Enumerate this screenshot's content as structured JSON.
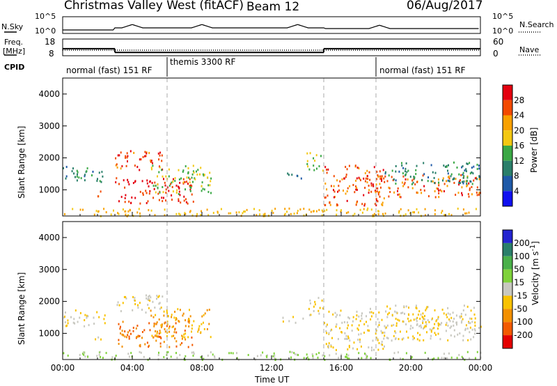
{
  "header": {
    "station": "Christmas Valley West (fitACF)",
    "beam": "Beam 12",
    "date": "06/Aug/2017"
  },
  "noise_panel": {
    "left_label": "N.Sky",
    "right_label": "N.Search",
    "ticks": [
      "10^5",
      "10^0"
    ]
  },
  "freq_panel": {
    "left_label_1": "Freq.",
    "left_label_2": "[MHz]",
    "left_ticks": [
      "18",
      "8"
    ],
    "right_label": "Nave",
    "right_ticks": [
      "60",
      "0"
    ]
  },
  "cpid_panel": {
    "label": "CPID",
    "modes": [
      {
        "name": "normal (fast) 151 RF",
        "start": 0,
        "end": 6
      },
      {
        "name": "themis 3300 RF",
        "start": 6,
        "end": 18
      },
      {
        "name": "normal (fast) 151 RF",
        "start": 18,
        "end": 24
      }
    ]
  },
  "power_panel": {
    "ylabel": "Slant Range [km]",
    "colorbar_label": "Power [dB]",
    "colorbar_ticks": [
      "28",
      "24",
      "20",
      "16",
      "12",
      "8",
      "4"
    ],
    "colorbar_colors": [
      "#e4000f",
      "#f34a00",
      "#f9a100",
      "#f3c812",
      "#3aa845",
      "#2a7f6a",
      "#1f5aa8",
      "#1010f0"
    ]
  },
  "velocity_panel": {
    "ylabel": "Slant Range [km]",
    "colorbar_label": "Velocity [m s^-1]",
    "colorbar_ticks": [
      "200",
      "100",
      "50",
      "15",
      "-15",
      "-50",
      "-100",
      "-200"
    ],
    "colorbar_colors": [
      "#2424d0",
      "#2a7f6a",
      "#4ab04a",
      "#7fd23a",
      "#c8c8c0",
      "#f9c200",
      "#f39000",
      "#f35a00",
      "#e40000"
    ]
  },
  "x_axis": {
    "label": "Time UT",
    "ticks": [
      "00:00",
      "04:00",
      "08:00",
      "12:00",
      "16:00",
      "20:00",
      "00:00"
    ]
  },
  "chart_data": {
    "type": "heatmap",
    "title": "Christmas Valley West (fitACF)",
    "subtitle": "Beam 12",
    "xlabel": "Time UT",
    "ylabel": "Slant Range [km]",
    "xlim_hours": [
      0,
      24
    ],
    "ylim_km": [
      180,
      4500
    ],
    "y_ticks": [
      1000,
      2000,
      3000,
      4000
    ],
    "frequency_mhz": [
      {
        "start": 0,
        "end": 3,
        "value": 12.2
      },
      {
        "start": 3,
        "end": 15,
        "value": 10.0
      },
      {
        "start": 15,
        "end": 24,
        "value": 12.2
      }
    ],
    "nave": [
      {
        "start": 0,
        "end": 3,
        "value": 20
      },
      {
        "start": 3,
        "end": 15,
        "value": 20
      },
      {
        "start": 15,
        "end": 24,
        "value": 20
      }
    ],
    "dashed_markers_hours": [
      6,
      15,
      18
    ],
    "scatter_regions": [
      {
        "t0": 0.0,
        "t1": 2.4,
        "r0": 1250,
        "r1": 1750,
        "power": 10,
        "velocity": -15
      },
      {
        "t0": 1.7,
        "t1": 2.2,
        "r0": 800,
        "r1": 1000,
        "power": 22,
        "velocity": -15
      },
      {
        "t0": 3.0,
        "t1": 5.8,
        "r0": 1650,
        "r1": 2250,
        "power": 27,
        "velocity": -15
      },
      {
        "t0": 3.0,
        "t1": 7.5,
        "r0": 600,
        "r1": 1400,
        "power": 28,
        "velocity": -100
      },
      {
        "t0": 5.0,
        "t1": 8.5,
        "r0": 900,
        "r1": 1800,
        "power": 16,
        "velocity": -50
      },
      {
        "t0": 12.6,
        "t1": 13.8,
        "r0": 1350,
        "r1": 1550,
        "power": 8,
        "velocity": -15
      },
      {
        "t0": 14.0,
        "t1": 15.0,
        "r0": 1600,
        "r1": 2200,
        "power": 16,
        "velocity": -15
      },
      {
        "t0": 15.0,
        "t1": 18.5,
        "r0": 500,
        "r1": 1800,
        "power": 26,
        "velocity": -15
      },
      {
        "t0": 18.0,
        "t1": 24.0,
        "r0": 800,
        "r1": 1500,
        "power": 25,
        "velocity": -15
      },
      {
        "t0": 18.5,
        "t1": 24.0,
        "r0": 1200,
        "r1": 1900,
        "power": 10,
        "velocity": -15
      },
      {
        "t0": 0.0,
        "t1": 24.0,
        "r0": 200,
        "r1": 450,
        "power": 20,
        "velocity": 15
      }
    ]
  }
}
